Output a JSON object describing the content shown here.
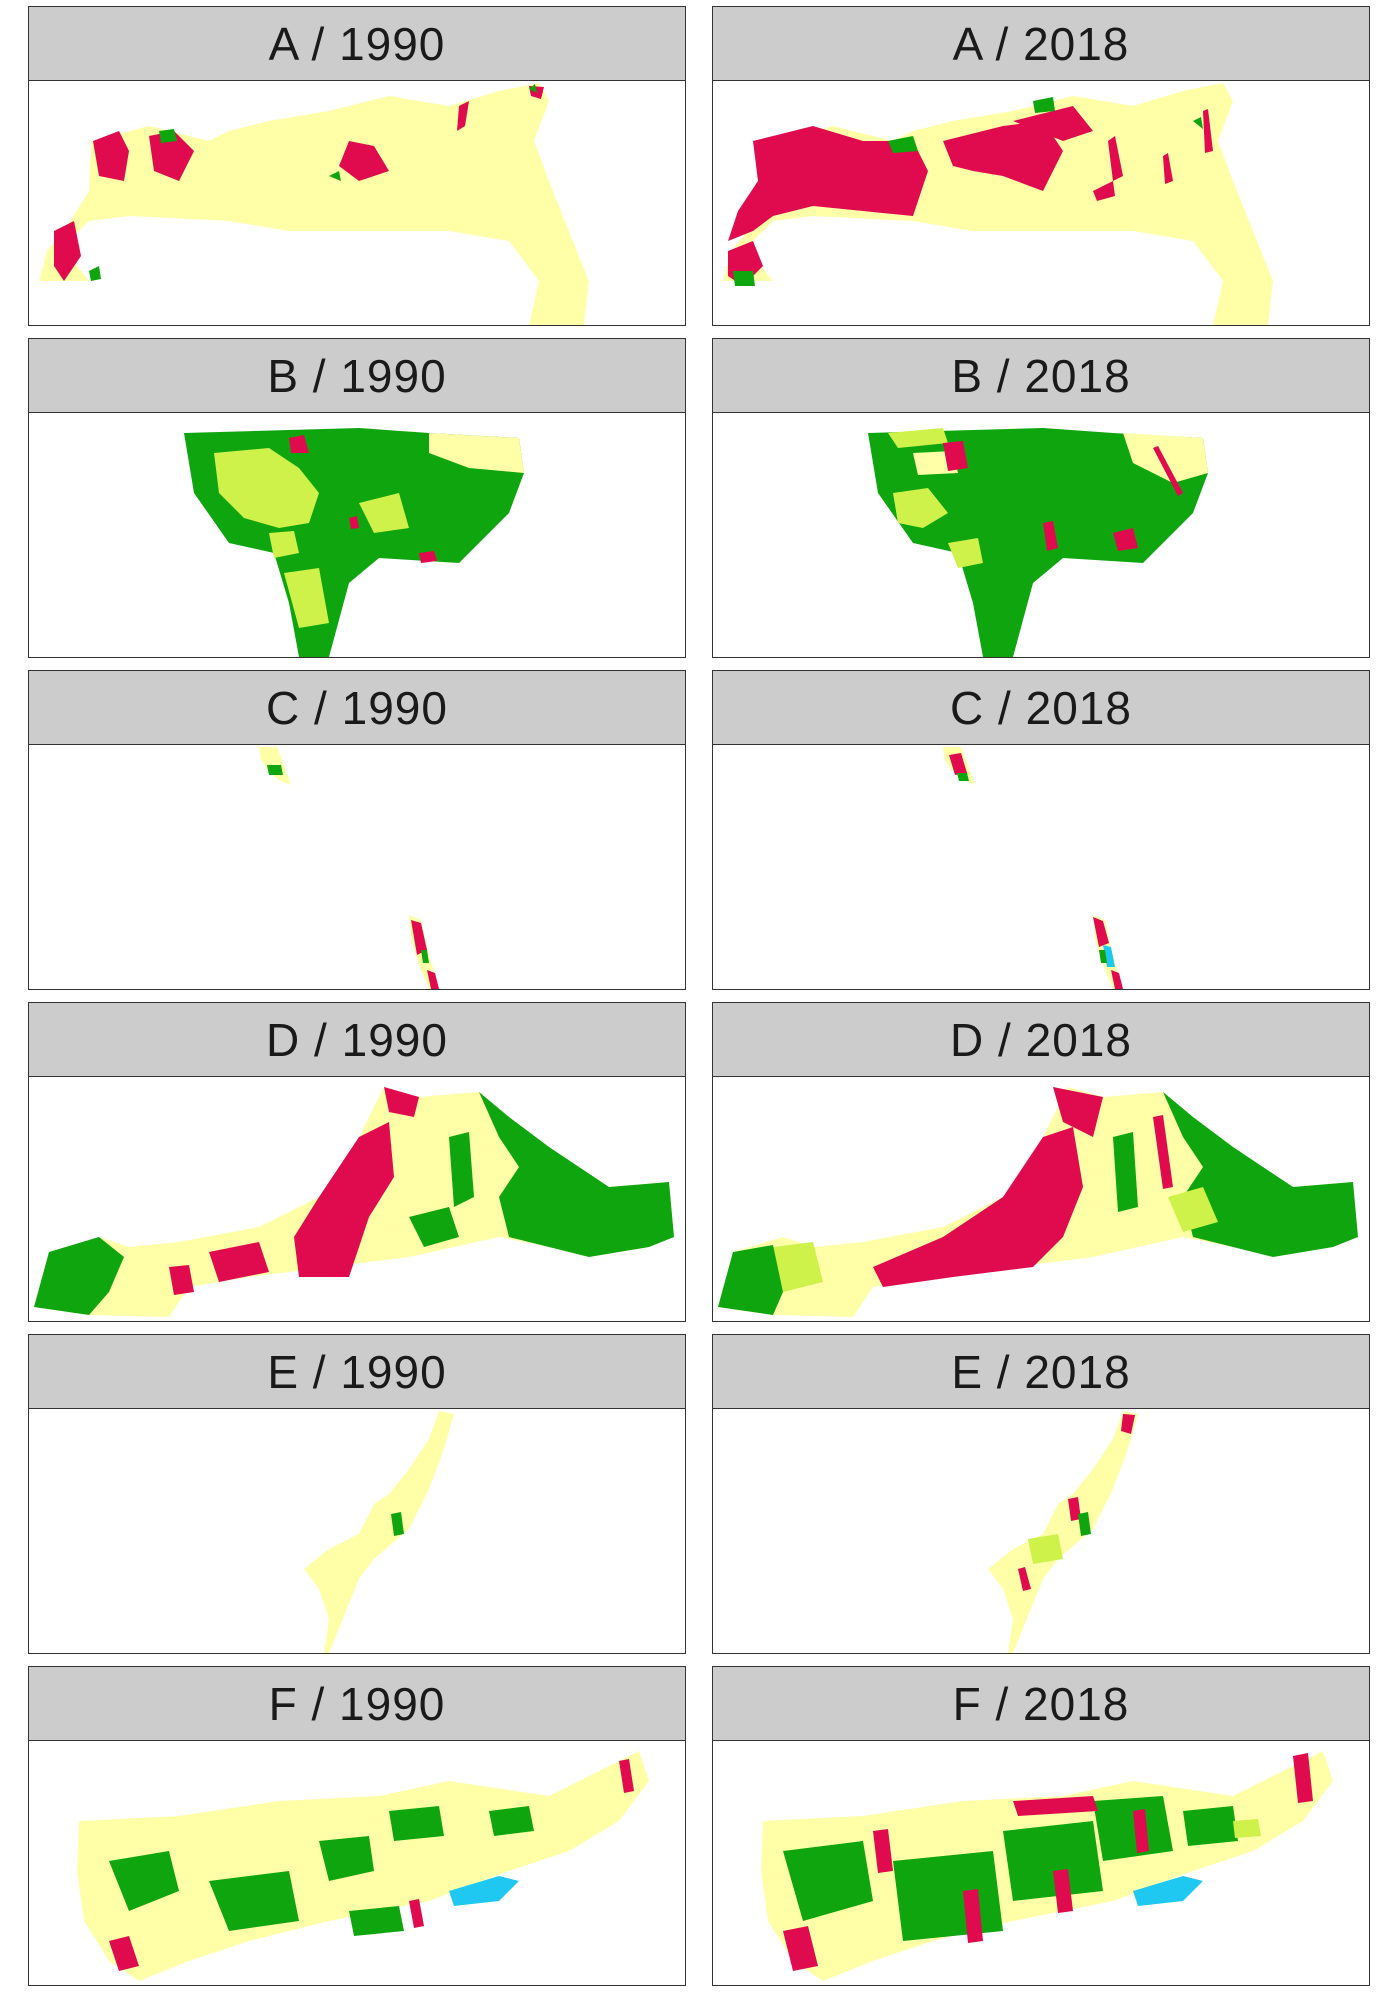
{
  "colors": {
    "cream": "#ffffa8",
    "red": "#e00a4e",
    "green": "#0fa50f",
    "lightgreen": "#cef24a",
    "blue": "#1ec8f0",
    "strip": "#cccccc",
    "border": "#333333"
  },
  "panels": [
    {
      "label": "A  /  1990"
    },
    {
      "label": "A  /  2018"
    },
    {
      "label": "B  /  1990"
    },
    {
      "label": "B  /  2018"
    },
    {
      "label": "C  /  1990"
    },
    {
      "label": "C  /  2018"
    },
    {
      "label": "D  /  1990"
    },
    {
      "label": "D  /  2018"
    },
    {
      "label": "E  /  1990"
    },
    {
      "label": "E  /  2018"
    },
    {
      "label": "F  /  1990"
    },
    {
      "label": "F  /  2018"
    }
  ]
}
